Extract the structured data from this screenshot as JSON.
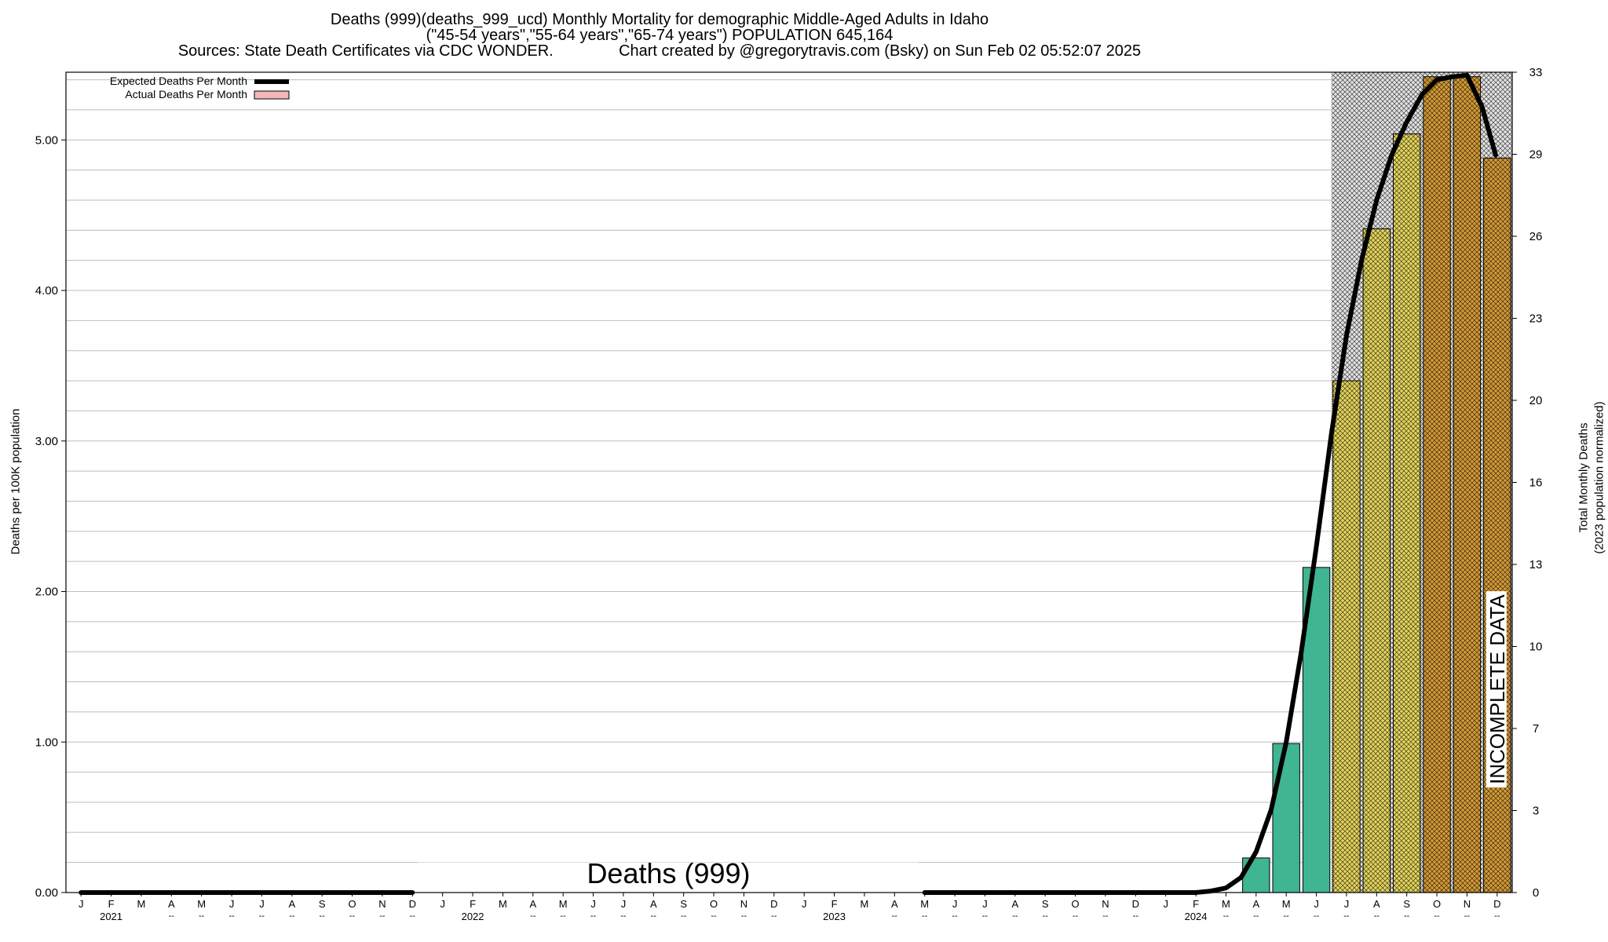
{
  "header": {
    "title_line1": "Deaths (999)(deaths_999_ucd) Monthly Mortality for demographic Middle-Aged Adults in Idaho",
    "title_line2": "(\"45-54 years\",\"55-64 years\",\"65-74 years\") POPULATION 645,164",
    "title_line3": "Sources: State Death Certificates via CDC WONDER.               Chart created by @gregorytravis.com (Bsky) on Sun Feb 02 05:52:07 2025"
  },
  "chart_data": {
    "type": "bar",
    "watermark": "Deaths (999)",
    "incomplete_label": "INCOMPLETE DATA",
    "ylabel_left": "Deaths per 100K population",
    "ylabel_right_line1": "Total Monthly Deaths",
    "ylabel_right_line2": "(2023 population normalized)",
    "ylim": [
      0,
      5.45
    ],
    "y_ticks_left": [
      "0.00",
      "1.00",
      "2.00",
      "3.00",
      "4.00",
      "5.00"
    ],
    "y_ticks_right": [
      "0",
      "3",
      "7",
      "10",
      "13",
      "16",
      "20",
      "23",
      "26",
      "29",
      "33"
    ],
    "grid": true,
    "legend": [
      {
        "label": "Expected Deaths Per Month",
        "kind": "line",
        "color": "#000000"
      },
      {
        "label": "Actual Deaths Per Month",
        "kind": "box",
        "color": "#f4b6b6"
      }
    ],
    "legend_position": "top-left",
    "month_labels": [
      "J",
      "F",
      "M",
      "A",
      "M",
      "J",
      "J",
      "A",
      "S",
      "O",
      "N",
      "D",
      "J",
      "F",
      "M",
      "A",
      "M",
      "J",
      "J",
      "A",
      "S",
      "O",
      "N",
      "D",
      "J",
      "F",
      "M",
      "A",
      "M",
      "J",
      "J",
      "A",
      "S",
      "O",
      "N",
      "D",
      "J",
      "F",
      "M",
      "A",
      "M",
      "J",
      "J",
      "A",
      "S",
      "O",
      "N",
      "D"
    ],
    "year_labels": [
      "2021",
      "2022",
      "2023",
      "2024"
    ],
    "dash_label": "--",
    "bars": [
      {
        "month_index": 39,
        "value": 0.23,
        "style": "solid",
        "color": "#3fb592"
      },
      {
        "month_index": 40,
        "value": 0.99,
        "style": "solid",
        "color": "#3fb592"
      },
      {
        "month_index": 41,
        "value": 2.16,
        "style": "solid",
        "color": "#3fb592"
      },
      {
        "month_index": 42,
        "value": 3.4,
        "style": "hatched",
        "color": "#e3d35c"
      },
      {
        "month_index": 43,
        "value": 4.41,
        "style": "hatched",
        "color": "#e3d35c"
      },
      {
        "month_index": 44,
        "value": 5.04,
        "style": "hatched",
        "color": "#e3d35c"
      },
      {
        "month_index": 45,
        "value": 5.42,
        "style": "hatched",
        "color": "#d49a36"
      },
      {
        "month_index": 46,
        "value": 5.42,
        "style": "hatched",
        "color": "#d49a36"
      },
      {
        "month_index": 47,
        "value": 4.88,
        "style": "hatched",
        "color": "#d49a36"
      }
    ],
    "expected_line": [
      [
        0,
        0
      ],
      [
        1,
        0
      ],
      [
        2,
        0
      ],
      [
        3,
        0
      ],
      [
        4,
        0
      ],
      [
        5,
        0
      ],
      [
        6,
        0
      ],
      [
        7,
        0
      ],
      [
        8,
        0
      ],
      [
        9,
        0
      ],
      [
        10,
        0
      ],
      [
        11,
        0
      ],
      [
        28,
        0
      ],
      [
        29,
        0
      ],
      [
        30,
        0
      ],
      [
        31,
        0
      ],
      [
        32,
        0
      ],
      [
        33,
        0
      ],
      [
        34,
        0
      ],
      [
        35,
        0
      ],
      [
        36,
        0
      ],
      [
        37,
        0
      ],
      [
        37.5,
        0.01
      ],
      [
        38,
        0.03
      ],
      [
        38.5,
        0.1
      ],
      [
        39,
        0.27
      ],
      [
        39.5,
        0.55
      ],
      [
        40,
        1.0
      ],
      [
        40.5,
        1.6
      ],
      [
        41,
        2.3
      ],
      [
        41.5,
        3.05
      ],
      [
        42,
        3.7
      ],
      [
        42.5,
        4.2
      ],
      [
        43,
        4.6
      ],
      [
        43.5,
        4.9
      ],
      [
        44,
        5.12
      ],
      [
        44.5,
        5.3
      ],
      [
        45,
        5.4
      ],
      [
        45.5,
        5.42
      ],
      [
        46,
        5.43
      ],
      [
        46.5,
        5.22
      ],
      [
        46.95,
        4.9
      ]
    ],
    "incomplete_from_month_index": 42,
    "colors": {
      "green": "#3fb592",
      "yellow": "#e3d35c",
      "orange": "#d49a36",
      "grid": "#bdbdbd",
      "shade": "#e2e2e2"
    }
  }
}
